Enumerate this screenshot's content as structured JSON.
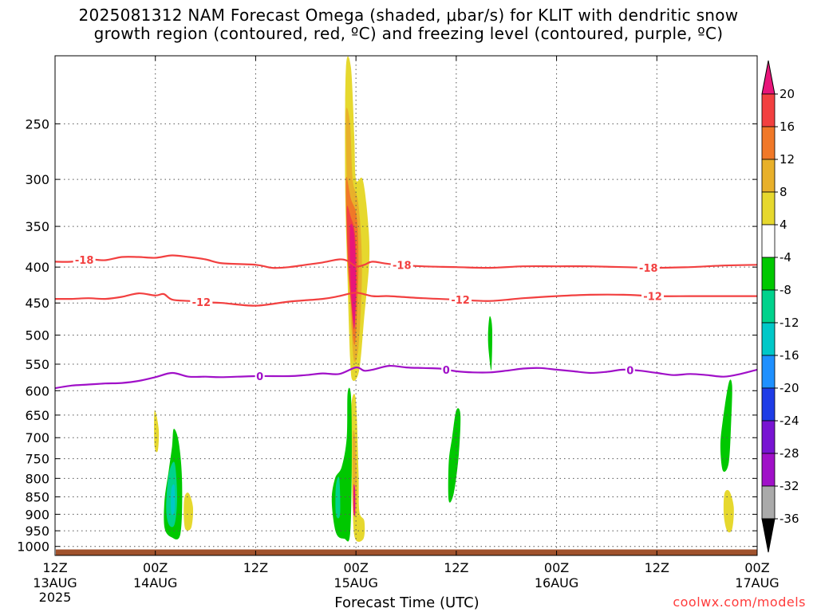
{
  "title_line1": "2025081312 NAM Forecast Omega (shaded, μbar/s) for KLIT with dendritic snow",
  "title_line2": "growth region (contoured, red, ºC) and freezing level (contoured, purple, ºC)",
  "xlabel": "Forecast Time (UTC)",
  "credit": "coolwx.com/models",
  "chart_data": {
    "type": "heatmap",
    "title": "2025081312 NAM Forecast Omega (shaded, μbar/s) for KLIT with dendritic snow growth region (contoured, red, ºC) and freezing level (contoured, purple, ºC)",
    "xlabel": "Forecast Time (UTC)",
    "ylabel": "",
    "x_unit": "hours since 2025-08-13 12Z",
    "xlim": [
      0,
      84
    ],
    "y_scale": "log-pressure",
    "ylim": [
      1030,
      200
    ],
    "x_ticks": [
      {
        "hour": 0,
        "l1": "12Z",
        "l2": "13AUG",
        "l3": "2025"
      },
      {
        "hour": 12,
        "l1": "00Z",
        "l2": "14AUG",
        "l3": ""
      },
      {
        "hour": 24,
        "l1": "12Z",
        "l2": "",
        "l3": ""
      },
      {
        "hour": 36,
        "l1": "00Z",
        "l2": "15AUG",
        "l3": ""
      },
      {
        "hour": 48,
        "l1": "12Z",
        "l2": "",
        "l3": ""
      },
      {
        "hour": 60,
        "l1": "00Z",
        "l2": "16AUG",
        "l3": ""
      },
      {
        "hour": 72,
        "l1": "12Z",
        "l2": "",
        "l3": ""
      },
      {
        "hour": 84,
        "l1": "00Z",
        "l2": "17AUG",
        "l3": ""
      }
    ],
    "y_ticks": [
      250,
      300,
      350,
      400,
      450,
      500,
      550,
      600,
      650,
      700,
      750,
      800,
      850,
      900,
      950,
      1000
    ],
    "grid": true,
    "colorbar": {
      "labels": [
        "20",
        "16",
        "12",
        "8",
        "4",
        "-4",
        "-8",
        "-12",
        "-16",
        "-20",
        "-24",
        "-28",
        "-32",
        "-36"
      ],
      "colors": [
        "#e8157a",
        "#f24040",
        "#f07828",
        "#e8b02a",
        "#e6d82e",
        "#ffffff",
        "#00c800",
        "#00d28c",
        "#00c8c8",
        "#1e90ff",
        "#1e3ce6",
        "#7814d2",
        "#a010c8",
        "#aaaaaa",
        "#000000"
      ]
    },
    "omega_regions": [
      {
        "shade": "#e6d82e",
        "points": [
          [
            34.8,
            208
          ],
          [
            35.4,
            208
          ],
          [
            35.8,
            260
          ],
          [
            36.0,
            300
          ],
          [
            36.8,
            300
          ],
          [
            37.4,
            340
          ],
          [
            37.6,
            390
          ],
          [
            37.0,
            470
          ],
          [
            36.4,
            560
          ],
          [
            35.6,
            580
          ],
          [
            35.3,
            540
          ],
          [
            35.0,
            420
          ],
          [
            34.7,
            300
          ]
        ]
      },
      {
        "shade": "#e8b02a",
        "points": [
          [
            34.8,
            240
          ],
          [
            35.3,
            250
          ],
          [
            35.6,
            300
          ],
          [
            36.2,
            320
          ],
          [
            36.6,
            360
          ],
          [
            36.7,
            420
          ],
          [
            36.3,
            520
          ],
          [
            35.8,
            545
          ],
          [
            35.5,
            500
          ],
          [
            35.1,
            400
          ],
          [
            34.9,
            300
          ]
        ]
      },
      {
        "shade": "#f07828",
        "points": [
          [
            34.8,
            300
          ],
          [
            35.4,
            320
          ],
          [
            36.1,
            340
          ],
          [
            36.3,
            400
          ],
          [
            36.0,
            500
          ],
          [
            35.7,
            510
          ],
          [
            35.4,
            450
          ],
          [
            35.0,
            390
          ]
        ]
      },
      {
        "shade": "#f24040",
        "points": [
          [
            34.9,
            330
          ],
          [
            35.4,
            340
          ],
          [
            35.9,
            360
          ],
          [
            36.1,
            420
          ],
          [
            35.8,
            480
          ],
          [
            35.5,
            460
          ],
          [
            35.1,
            400
          ]
        ]
      },
      {
        "shade": "#e8157a",
        "points": [
          [
            35.3,
            350
          ],
          [
            35.8,
            360
          ],
          [
            36.0,
            430
          ],
          [
            35.8,
            490
          ],
          [
            35.5,
            450
          ],
          [
            35.3,
            400
          ]
        ]
      },
      {
        "shade": "#e6d82e",
        "points": [
          [
            35.5,
            620
          ],
          [
            36.0,
            620
          ],
          [
            36.3,
            780
          ],
          [
            36.4,
            890
          ],
          [
            37.0,
            920
          ],
          [
            36.9,
            975
          ],
          [
            35.9,
            975
          ],
          [
            35.6,
            880
          ],
          [
            35.4,
            700
          ]
        ]
      },
      {
        "shade": "#e8b02a",
        "points": [
          [
            35.6,
            700
          ],
          [
            35.9,
            700
          ],
          [
            36.1,
            820
          ],
          [
            36.0,
            900
          ],
          [
            35.7,
            880
          ]
        ]
      },
      {
        "shade": "#e8157a",
        "points": [
          [
            35.7,
            820
          ],
          [
            35.9,
            830
          ],
          [
            35.9,
            900
          ],
          [
            35.7,
            890
          ]
        ]
      },
      {
        "shade": "#00c800",
        "points": [
          [
            35.0,
            605
          ],
          [
            35.4,
            610
          ],
          [
            35.5,
            750
          ],
          [
            35.3,
            960
          ],
          [
            34.6,
            975
          ],
          [
            33.6,
            955
          ],
          [
            33.1,
            860
          ],
          [
            33.5,
            800
          ],
          [
            34.3,
            770
          ],
          [
            34.9,
            700
          ]
        ]
      },
      {
        "shade": "#00d28c",
        "points": [
          [
            33.6,
            820
          ],
          [
            34.0,
            800
          ],
          [
            34.1,
            900
          ],
          [
            33.6,
            900
          ]
        ]
      },
      {
        "shade": "#00c800",
        "points": [
          [
            14.2,
            680
          ],
          [
            14.8,
            710
          ],
          [
            15.2,
            810
          ],
          [
            15.0,
            960
          ],
          [
            13.9,
            970
          ],
          [
            13.1,
            940
          ],
          [
            13.1,
            860
          ],
          [
            13.6,
            780
          ],
          [
            14.0,
            720
          ]
        ]
      },
      {
        "shade": "#00d28c",
        "points": [
          [
            13.6,
            790
          ],
          [
            14.3,
            760
          ],
          [
            14.6,
            850
          ],
          [
            14.3,
            930
          ],
          [
            13.6,
            930
          ],
          [
            13.3,
            880
          ]
        ]
      },
      {
        "shade": "#00c8c8",
        "points": [
          [
            13.9,
            830
          ],
          [
            14.3,
            820
          ],
          [
            14.3,
            890
          ],
          [
            13.9,
            895
          ]
        ]
      },
      {
        "shade": "#e6d82e",
        "points": [
          [
            11.9,
            640
          ],
          [
            12.4,
            680
          ],
          [
            12.3,
            730
          ],
          [
            11.9,
            720
          ]
        ]
      },
      {
        "shade": "#e6d82e",
        "points": [
          [
            15.5,
            850
          ],
          [
            16.0,
            840
          ],
          [
            16.5,
            880
          ],
          [
            16.3,
            940
          ],
          [
            15.6,
            945
          ],
          [
            15.4,
            900
          ]
        ]
      },
      {
        "shade": "#00c800",
        "points": [
          [
            48.0,
            640
          ],
          [
            48.5,
            650
          ],
          [
            48.3,
            740
          ],
          [
            47.7,
            840
          ],
          [
            47.1,
            860
          ],
          [
            47.1,
            760
          ],
          [
            47.5,
            700
          ]
        ]
      },
      {
        "shade": "#00c800",
        "points": [
          [
            52.0,
            470
          ],
          [
            52.3,
            490
          ],
          [
            52.2,
            560
          ],
          [
            51.9,
            530
          ],
          [
            51.8,
            500
          ]
        ]
      },
      {
        "shade": "#00c800",
        "points": [
          [
            80.6,
            585
          ],
          [
            81.0,
            590
          ],
          [
            80.9,
            660
          ],
          [
            80.6,
            760
          ],
          [
            79.9,
            780
          ],
          [
            79.6,
            720
          ],
          [
            79.9,
            660
          ]
        ]
      },
      {
        "shade": "#e6d82e",
        "points": [
          [
            80.1,
            840
          ],
          [
            80.7,
            835
          ],
          [
            81.2,
            880
          ],
          [
            81.0,
            945
          ],
          [
            80.4,
            950
          ],
          [
            80.0,
            900
          ]
        ]
      }
    ],
    "contours": [
      {
        "name": "-18",
        "color": "#f24040",
        "points": [
          [
            0,
            393
          ],
          [
            2,
            393
          ],
          [
            4,
            390
          ],
          [
            6,
            391
          ],
          [
            8,
            387
          ],
          [
            10,
            387
          ],
          [
            12,
            388
          ],
          [
            14,
            385
          ],
          [
            16,
            387
          ],
          [
            18,
            390
          ],
          [
            20,
            395
          ],
          [
            24,
            397
          ],
          [
            26,
            401
          ],
          [
            28,
            400
          ],
          [
            30,
            397
          ],
          [
            32,
            394
          ],
          [
            34,
            390
          ],
          [
            35,
            392
          ],
          [
            36,
            399
          ],
          [
            37,
            397
          ],
          [
            38,
            393
          ],
          [
            40,
            396
          ],
          [
            44,
            399
          ],
          [
            48,
            400
          ],
          [
            52,
            401
          ],
          [
            56,
            399
          ],
          [
            60,
            399
          ],
          [
            64,
            399
          ],
          [
            68,
            400
          ],
          [
            72,
            401
          ],
          [
            76,
            400
          ],
          [
            80,
            398
          ],
          [
            84,
            397
          ]
        ],
        "labels": [
          3.5,
          41.5,
          71
        ]
      },
      {
        "name": "-12",
        "color": "#f24040",
        "points": [
          [
            0,
            444
          ],
          [
            2,
            444
          ],
          [
            4,
            443
          ],
          [
            6,
            444
          ],
          [
            8,
            441
          ],
          [
            10,
            436
          ],
          [
            12,
            439
          ],
          [
            13,
            437
          ],
          [
            14,
            445
          ],
          [
            16,
            447
          ],
          [
            18,
            449
          ],
          [
            20,
            450
          ],
          [
            24,
            454
          ],
          [
            28,
            448
          ],
          [
            32,
            444
          ],
          [
            34,
            440
          ],
          [
            36,
            435
          ],
          [
            38,
            440
          ],
          [
            40,
            440
          ],
          [
            44,
            443
          ],
          [
            48,
            445
          ],
          [
            52,
            447
          ],
          [
            56,
            443
          ],
          [
            60,
            440
          ],
          [
            64,
            438
          ],
          [
            68,
            438
          ],
          [
            72,
            440
          ],
          [
            76,
            440
          ],
          [
            80,
            440
          ],
          [
            84,
            440
          ]
        ],
        "labels": [
          17.5,
          48.5,
          71.5
        ]
      },
      {
        "name": "0",
        "color": "#a010c8",
        "points": [
          [
            0,
            595
          ],
          [
            2,
            590
          ],
          [
            4,
            588
          ],
          [
            6,
            586
          ],
          [
            8,
            585
          ],
          [
            10,
            581
          ],
          [
            12,
            574
          ],
          [
            14,
            566
          ],
          [
            16,
            573
          ],
          [
            18,
            573
          ],
          [
            20,
            574
          ],
          [
            24,
            572
          ],
          [
            28,
            572
          ],
          [
            30,
            570
          ],
          [
            32,
            567
          ],
          [
            34,
            568
          ],
          [
            36,
            556
          ],
          [
            37,
            562
          ],
          [
            38,
            560
          ],
          [
            40,
            553
          ],
          [
            42,
            556
          ],
          [
            44,
            557
          ],
          [
            46,
            558
          ],
          [
            48,
            563
          ],
          [
            50,
            565
          ],
          [
            52,
            565
          ],
          [
            54,
            562
          ],
          [
            56,
            558
          ],
          [
            58,
            557
          ],
          [
            60,
            560
          ],
          [
            62,
            563
          ],
          [
            64,
            566
          ],
          [
            66,
            564
          ],
          [
            68,
            560
          ],
          [
            70,
            562
          ],
          [
            72,
            566
          ],
          [
            74,
            570
          ],
          [
            76,
            568
          ],
          [
            78,
            570
          ],
          [
            80,
            573
          ],
          [
            82,
            568
          ],
          [
            84,
            560
          ]
        ],
        "labels": [
          24.5,
          46.8,
          68.8
        ]
      }
    ],
    "terrain": {
      "color": "#a0522d",
      "pressure": 1010
    }
  }
}
